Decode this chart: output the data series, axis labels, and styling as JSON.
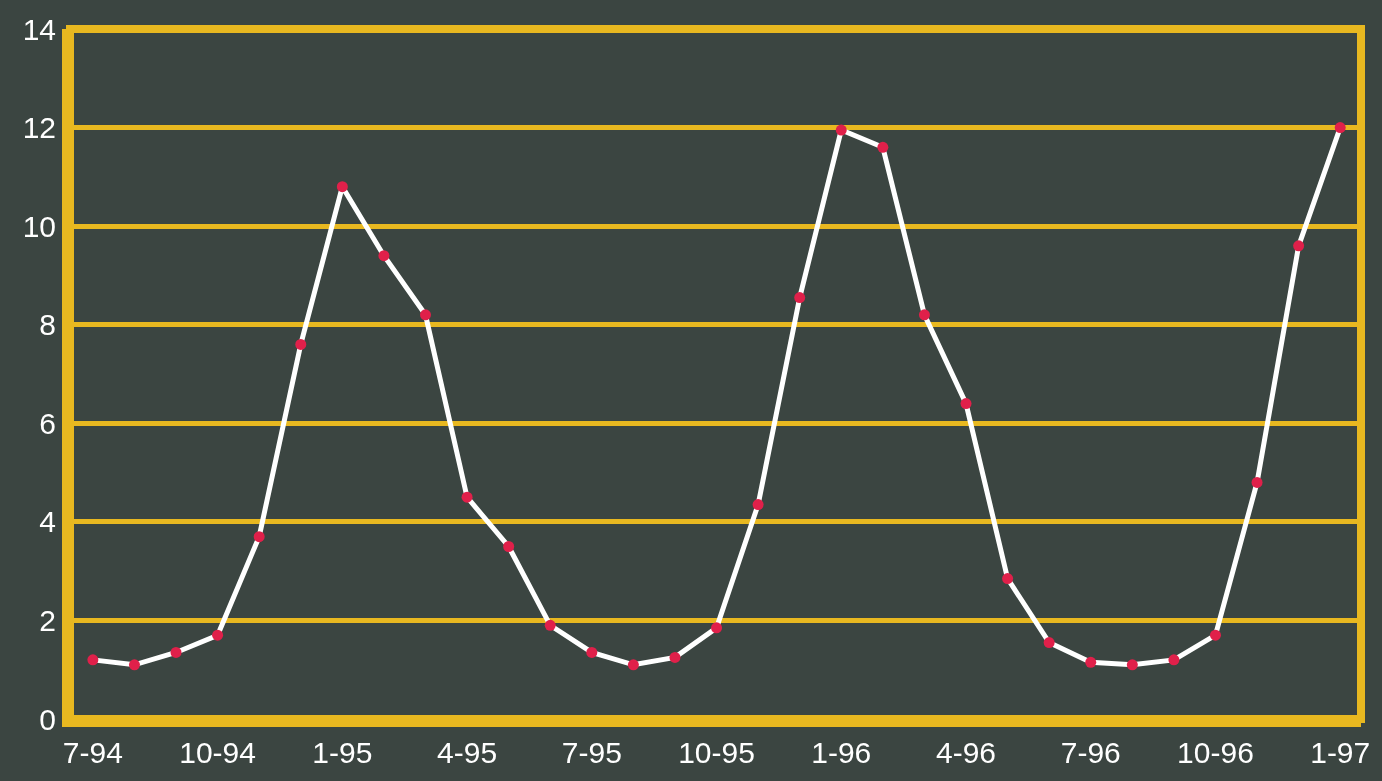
{
  "chart_data": {
    "type": "line",
    "categories": [
      "7-94",
      null,
      null,
      "10-94",
      null,
      null,
      "1-95",
      null,
      null,
      "4-95",
      null,
      null,
      "7-95",
      null,
      null,
      "10-95",
      null,
      null,
      "1-96",
      null,
      null,
      "4-96",
      null,
      null,
      "7-96",
      null,
      null,
      "10-96",
      null,
      null,
      "1-97"
    ],
    "series": [
      {
        "color": "#ffffff",
        "marker": "none",
        "values": [
          1.2,
          1.1,
          1.35,
          1.7,
          3.7,
          7.6,
          10.8,
          9.4,
          8.2,
          4.5,
          3.5,
          1.9,
          1.35,
          1.1,
          1.25,
          1.85,
          4.35,
          8.55,
          11.95,
          11.6,
          8.2,
          6.4,
          2.85,
          1.55,
          1.15,
          1.1,
          1.2,
          1.7,
          4.8,
          9.6,
          12.0
        ]
      },
      {
        "type": "scatter",
        "color": "#e0204a",
        "values": [
          1.2,
          1.1,
          1.35,
          1.7,
          3.7,
          7.6,
          10.8,
          9.4,
          8.2,
          4.5,
          3.5,
          1.9,
          1.35,
          1.1,
          1.25,
          1.85,
          4.35,
          8.55,
          11.95,
          11.6,
          8.2,
          6.4,
          2.85,
          1.55,
          1.15,
          1.1,
          1.2,
          1.7,
          4.8,
          9.6,
          12.0
        ]
      }
    ],
    "ylim": [
      0,
      14
    ],
    "yticks": [
      0,
      2,
      4,
      6,
      8,
      10,
      12,
      14
    ],
    "grid": "y",
    "marker": "circle",
    "line_style": "solid"
  }
}
